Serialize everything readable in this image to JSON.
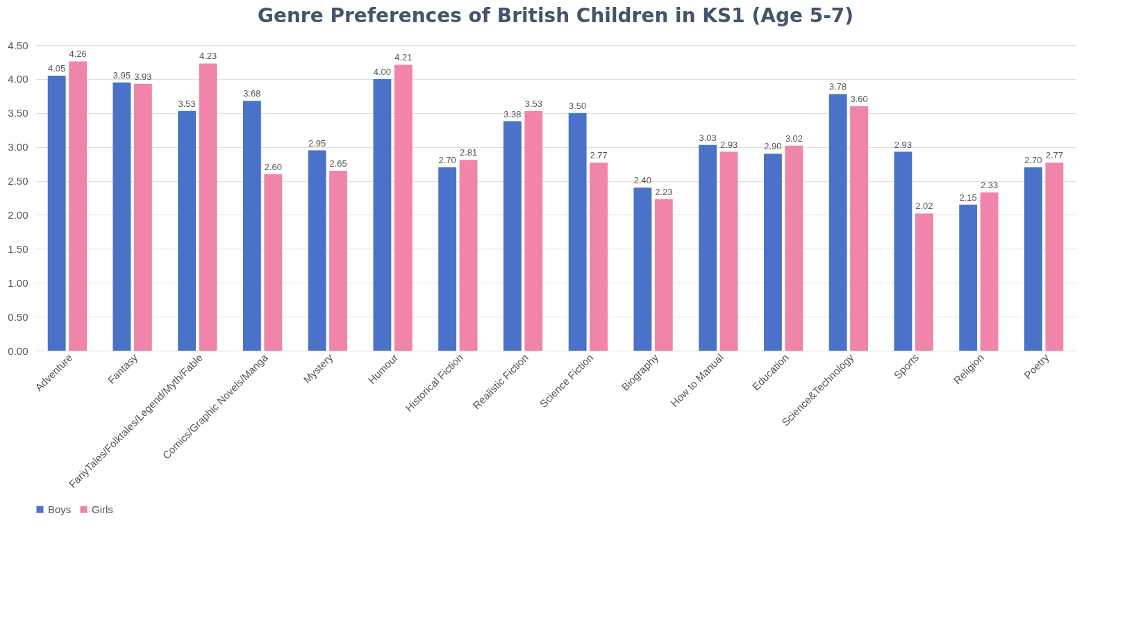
{
  "chart_data": {
    "type": "bar",
    "title": "Genre Preferences of British Children in KS1 (Age 5-7)",
    "categories": [
      "Adventure",
      "Fantasy",
      "FariyTales/Folktales/Legend/Myth/Fable",
      "Comics/Graphic Novels/Manga",
      "Mystery",
      "Humour",
      "Historical Fiction",
      "Realistic Fiction",
      "Science Fiction",
      "Biography",
      "How to Manual",
      "Education",
      "Science&Technology",
      "Sports",
      "Religion",
      "Poetry"
    ],
    "series": [
      {
        "name": "Boys",
        "color": "#4a72c8",
        "values": [
          4.05,
          3.95,
          3.53,
          3.68,
          2.95,
          4.0,
          2.7,
          3.38,
          3.5,
          2.4,
          3.03,
          2.9,
          3.78,
          2.93,
          2.15,
          2.7
        ],
        "value_labels": [
          "4.05",
          "3.95",
          "3.53",
          "3.68",
          "2.95",
          "4.00",
          "2.70",
          "3.38",
          "3.50",
          "2.40",
          "3.03",
          "2.90",
          "3.78",
          "2.93",
          "2.15",
          "2.70"
        ]
      },
      {
        "name": "Girls",
        "color": "#f084aa",
        "values": [
          4.26,
          3.93,
          4.23,
          2.6,
          2.65,
          4.21,
          2.81,
          3.53,
          2.77,
          2.23,
          2.93,
          3.02,
          3.6,
          2.02,
          2.33,
          2.77
        ],
        "value_labels": [
          "4.26",
          "3.93",
          "4.23",
          "2.60",
          "2.65",
          "4.21",
          "2.81",
          "3.53",
          "2.77",
          "2.23",
          "2.93",
          "3.02",
          "3.60",
          "2.02",
          "2.33",
          "2.77"
        ]
      }
    ],
    "ylim": [
      0,
      4.5
    ],
    "yticks": [
      {
        "value": 0,
        "label": "0.00"
      },
      {
        "value": 0.5,
        "label": "0.50"
      },
      {
        "value": 1,
        "label": "1.00"
      },
      {
        "value": 1.5,
        "label": "1.50"
      },
      {
        "value": 2,
        "label": "2.00"
      },
      {
        "value": 2.5,
        "label": "2.50"
      },
      {
        "value": 3,
        "label": "3.00"
      },
      {
        "value": 3.5,
        "label": "3.50"
      },
      {
        "value": 4,
        "label": "4.00"
      },
      {
        "value": 4.5,
        "label": "4.50"
      }
    ],
    "grid": "y",
    "legend": "bottom"
  }
}
